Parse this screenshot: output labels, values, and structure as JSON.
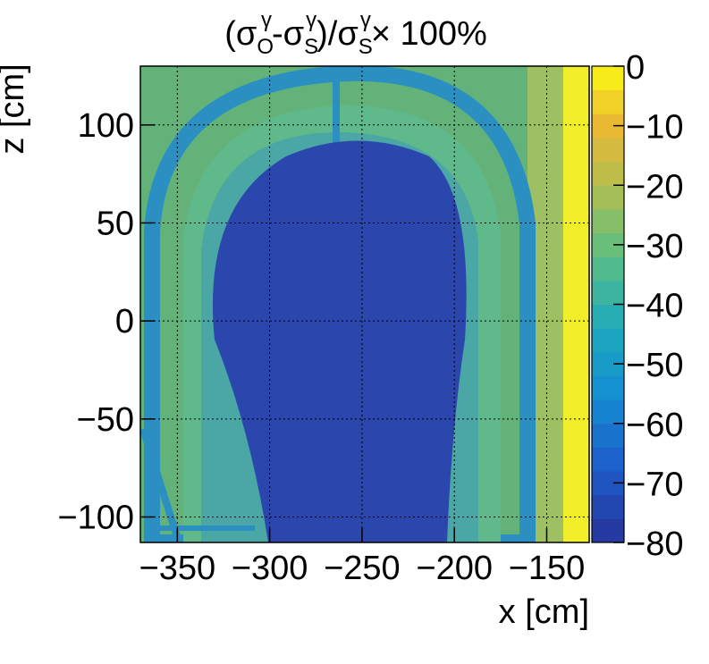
{
  "chart_data": {
    "type": "heatmap",
    "title": "(σ_O^γ-σ_S^γ)/σ_S^γ× 100%",
    "title_parts": {
      "open": "(σ",
      "sub_o": "O",
      "sup_gamma": "γ",
      "minus_sigma": "-σ",
      "sub_s": "S",
      "close_div_sigma": ")/σ",
      "times": "× 100%"
    },
    "xlabel": "x [cm]",
    "ylabel": "z [cm]",
    "xlim": [
      -370,
      -127
    ],
    "ylim": [
      -113,
      130
    ],
    "x_ticks": [
      -350,
      -300,
      -250,
      -200,
      -150
    ],
    "x_tick_labels": [
      "−350",
      "−300",
      "−250",
      "−200",
      "−150"
    ],
    "y_ticks": [
      -100,
      -50,
      0,
      50,
      100
    ],
    "y_tick_labels": [
      "−100",
      "−50",
      "0",
      "50",
      "100"
    ],
    "grid": true,
    "colorbar": {
      "range": [
        -80,
        0
      ],
      "ticks": [
        0,
        -10,
        -20,
        -30,
        -40,
        -50,
        -60,
        -70,
        -80
      ],
      "tick_labels": [
        "0",
        "−10",
        "−20",
        "−30",
        "−40",
        "−50",
        "−60",
        "−70",
        "−80"
      ],
      "levels": 20
    },
    "regions": [
      {
        "name": "inner-core",
        "value": -74,
        "description_shape": "rounded dome centered at x≈-255, top z≈88"
      },
      {
        "name": "inner-ring",
        "value": -50,
        "note": "band around inner core"
      },
      {
        "name": "outer-ring",
        "value": -45,
        "note": "arched band"
      },
      {
        "name": "outer-edge-band",
        "value": -62
      },
      {
        "name": "background",
        "value": -38
      },
      {
        "name": "right-edge",
        "value": -5,
        "note": "x > -145"
      }
    ]
  }
}
